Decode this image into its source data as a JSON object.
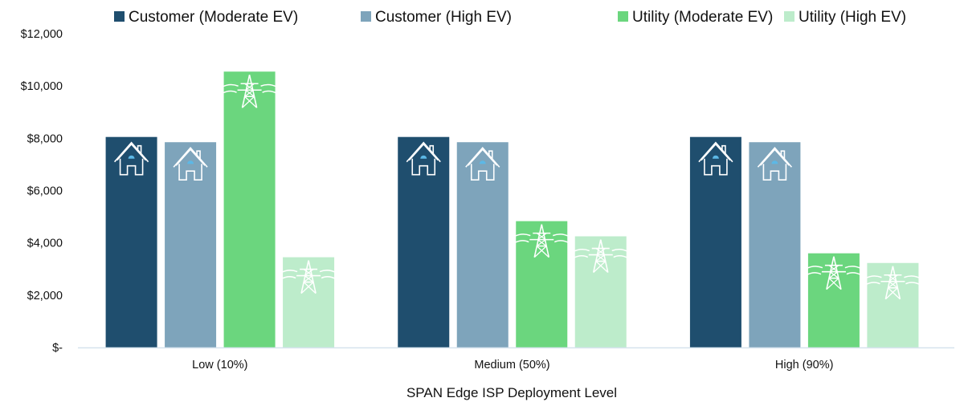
{
  "chart_data": {
    "type": "bar",
    "categories": [
      "Low (10%)",
      "Medium (50%)",
      "High (90%)"
    ],
    "series": [
      {
        "name": "Customer (Moderate EV)",
        "values": [
          8050,
          8050,
          8050
        ],
        "color": "#1f4e6e",
        "icon": "house-icon"
      },
      {
        "name": "Customer (High EV)",
        "values": [
          7850,
          7850,
          7850
        ],
        "color": "#7ea4bb",
        "icon": "house-icon"
      },
      {
        "name": "Utility (Moderate EV)",
        "values": [
          10550,
          4830,
          3600
        ],
        "color": "#6bd67e",
        "icon": "power-tower-icon"
      },
      {
        "name": "Utility (High EV)",
        "values": [
          3450,
          4250,
          3230
        ],
        "color": "#bdeccb",
        "icon": "power-tower-icon"
      }
    ],
    "yticks": [
      "$-",
      "$2,000",
      "$4,000",
      "$6,000",
      "$8,000",
      "$10,000",
      "$12,000"
    ],
    "xlabel": "SPAN Edge ISP Deployment Level",
    "ylabel": "",
    "ylim": [
      0,
      12000
    ],
    "legend_position": "top",
    "grid": false
  }
}
